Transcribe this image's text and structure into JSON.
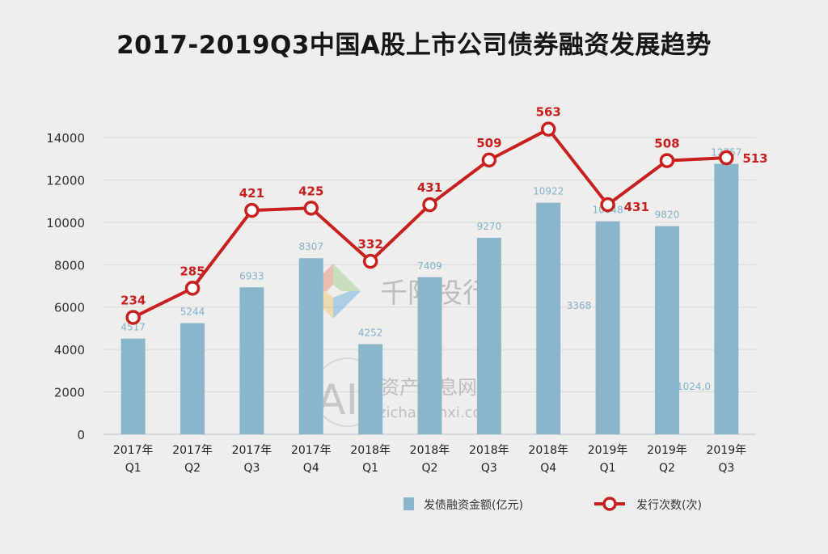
{
  "chart_data": {
    "type": "bar",
    "title": "2017-2019Q3中国A股上市公司债券融资发展趋势",
    "categories": [
      [
        "2017年",
        "Q1"
      ],
      [
        "2017年",
        "Q2"
      ],
      [
        "2017年",
        "Q3"
      ],
      [
        "2017年",
        "Q4"
      ],
      [
        "2018年",
        "Q1"
      ],
      [
        "2018年",
        "Q2"
      ],
      [
        "2018年",
        "Q3"
      ],
      [
        "2018年",
        "Q4"
      ],
      [
        "2019年",
        "Q1"
      ],
      [
        "2019年",
        "Q2"
      ],
      [
        "2019年",
        "Q3"
      ]
    ],
    "ylim": [
      0,
      14000
    ],
    "yticks": [
      0,
      2000,
      4000,
      6000,
      8000,
      10000,
      12000,
      14000
    ],
    "grid": true,
    "legend_position": "bottom",
    "series": [
      {
        "name": "发债融资金额(亿元)",
        "type": "bar",
        "color": "#8ab6cc",
        "values": [
          4517,
          5244,
          6933,
          8307,
          4252,
          7409,
          9270,
          10922,
          10048,
          9820,
          12757
        ],
        "labels": [
          "4517",
          "5244",
          "6933",
          "8307",
          "4252",
          "7409",
          "9270",
          "10922",
          "10048",
          "9820",
          "12757"
        ]
      },
      {
        "name": "发行次数(次)",
        "type": "line",
        "color": "#c8201f",
        "values": [
          234,
          285,
          421,
          425,
          332,
          431,
          509,
          563,
          431,
          508,
          513
        ],
        "labels": [
          "234",
          "285",
          "421",
          "425",
          "332",
          "431",
          "509",
          "563",
          "431",
          "508",
          "513"
        ]
      }
    ]
  },
  "watermarks": {
    "brand_name": "千际投行",
    "site_letters": "AI",
    "site_name": "资产信息网",
    "site_url": "zichanxinxi.com",
    "stray_labels": [
      "3368",
      "1024,0"
    ]
  }
}
